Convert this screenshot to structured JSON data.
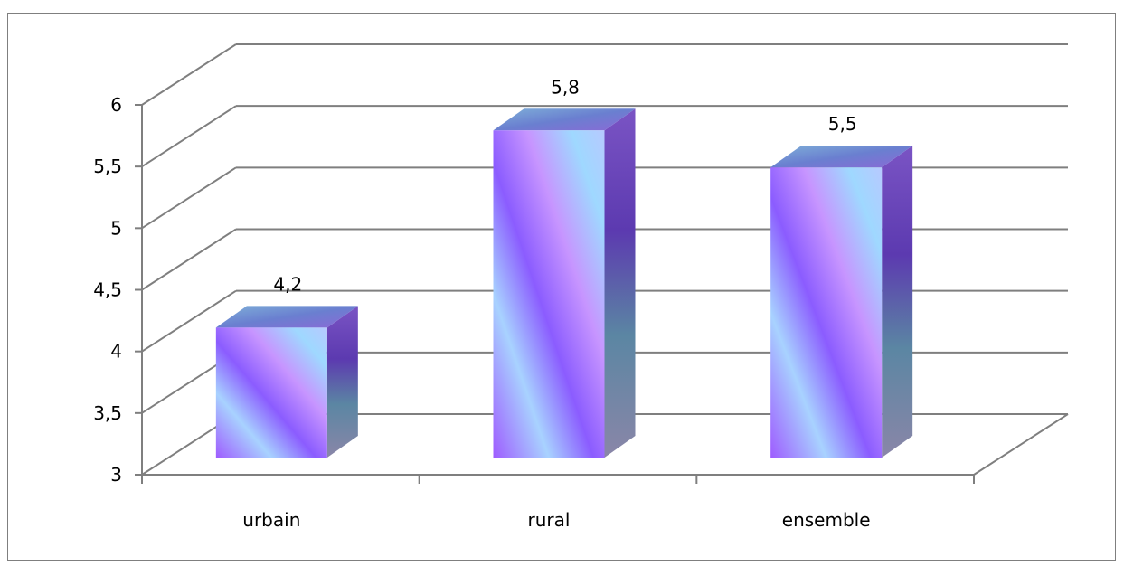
{
  "chart_data": {
    "type": "bar",
    "style": "3d-column",
    "categories": [
      "urbain",
      "rural",
      "ensemble"
    ],
    "values": [
      4.2,
      5.8,
      5.5
    ],
    "value_labels": [
      "4,2",
      "5,8",
      "5,5"
    ],
    "ylim": [
      3,
      6
    ],
    "yticks": [
      3,
      3.5,
      4,
      4.5,
      5,
      5.5,
      6
    ],
    "ytick_labels": [
      "3",
      "3,5",
      "4",
      "4,5",
      "5",
      "5,5",
      "6"
    ],
    "grid": true,
    "legend": "none",
    "title": "",
    "xlabel": "",
    "ylabel": "",
    "colors": {
      "bar_light": "#9fd8ff",
      "bar_mid": "#c58cff",
      "bar_dark": "#8b5cff",
      "side_dark": "#5a3fb0",
      "side_teal": "#5f8aa6",
      "top": "#6b8fd4",
      "grid": "#7f7f7f",
      "axis": "#7f7f7f"
    }
  }
}
